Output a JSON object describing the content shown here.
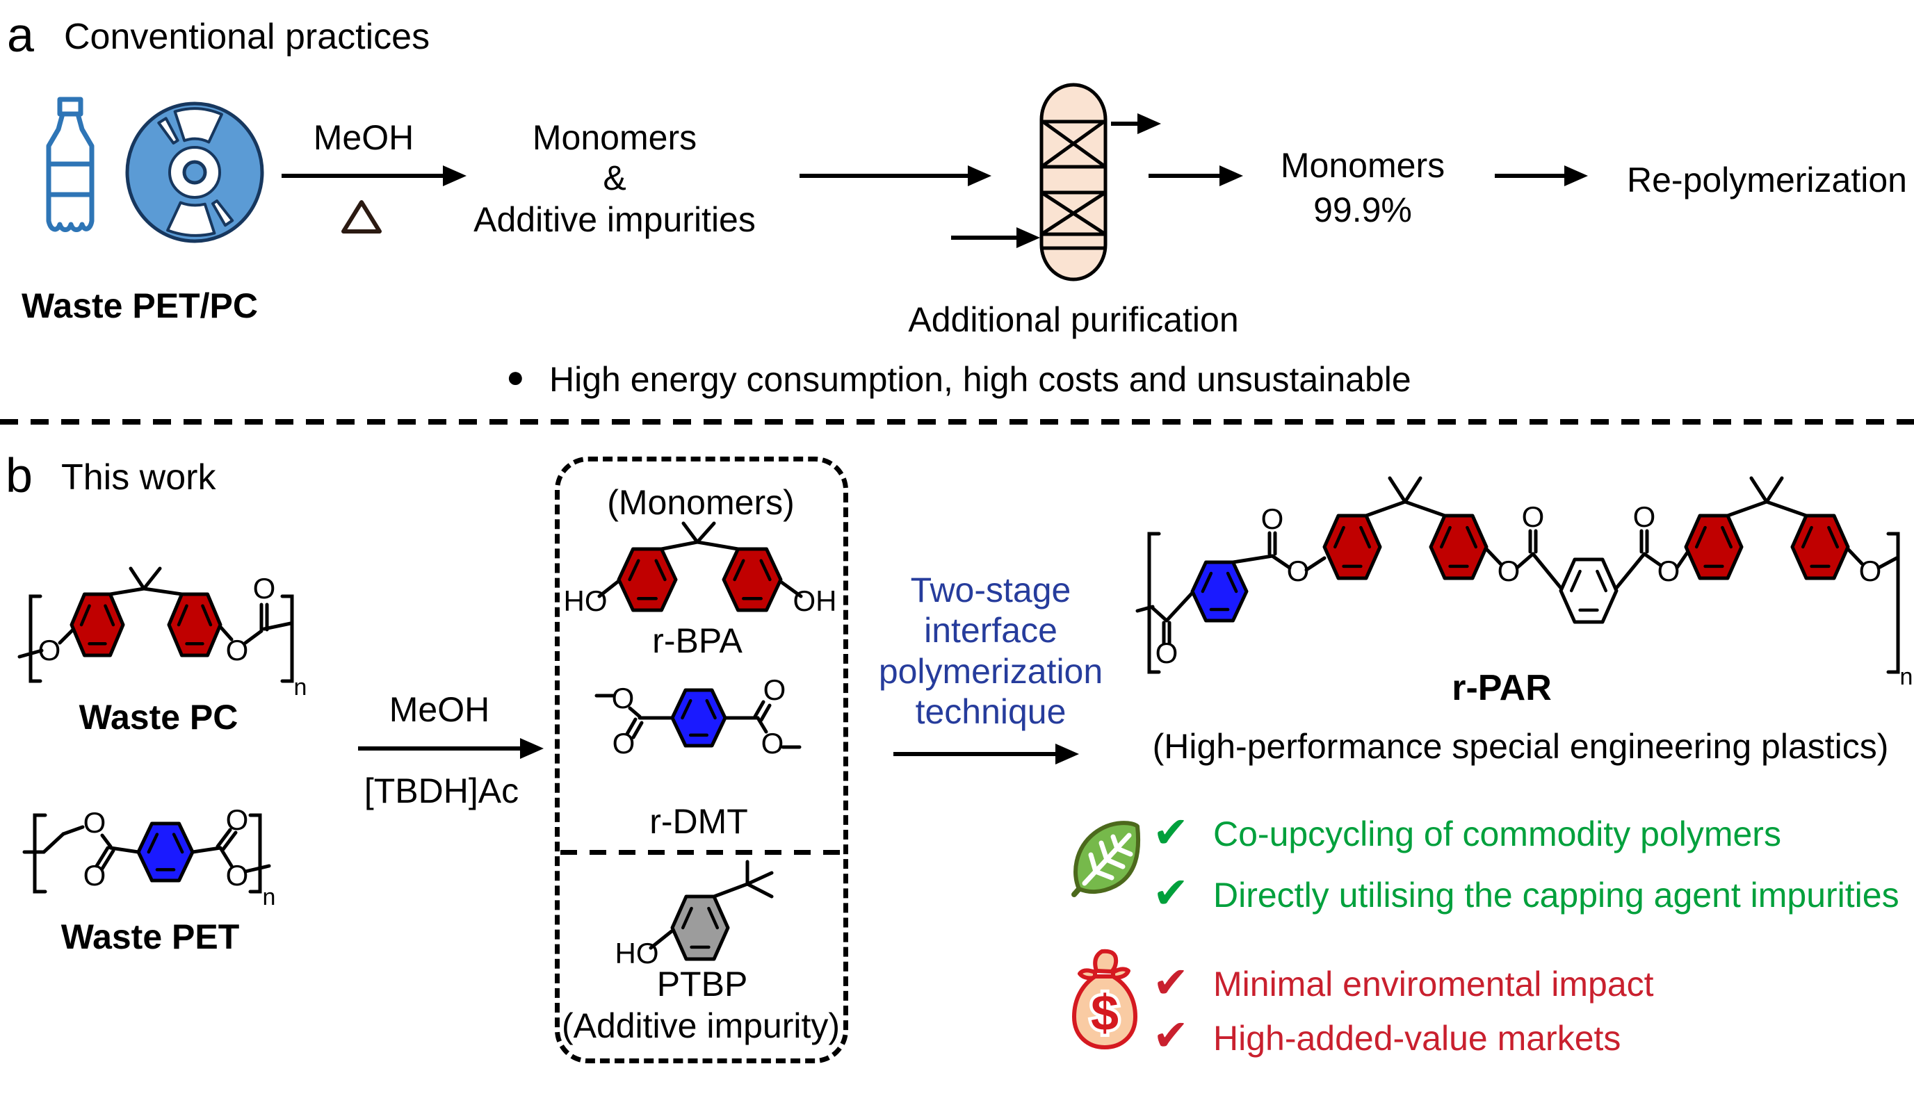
{
  "colors": {
    "icon_blue": "#5B9BD5",
    "icon_blue_stroke": "#2E75B6",
    "cd_outline": "#17375E",
    "column_fill": "#FAE3D2",
    "ring_red": "#C00000",
    "ring_blue": "#1A1AFF",
    "ring_gray": "#9C9C9C",
    "ring_white": "#FFFFFF",
    "process_text": "#263C9C",
    "green": "#00A03C",
    "red": "#C9202E",
    "leaf_fill": "#76B94B",
    "leaf_stroke": "#4C691C",
    "bag_red": "#D51920",
    "bag_fill": "#F9CBA3"
  },
  "panel_a": {
    "label": "a",
    "title": "Conventional practices",
    "feedstock_label": "Waste PET/PC",
    "reagent": "MeOH",
    "products": {
      "line1": "Monomers",
      "line2": "&",
      "line3": "Additive impurities"
    },
    "purification_caption": "Additional purification",
    "purified": {
      "line1": "Monomers",
      "line2": "99.9%"
    },
    "final_step": "Re-polymerization",
    "drawback": "High energy consumption, high costs and unsustainable"
  },
  "panel_b": {
    "label": "b",
    "title": "This work",
    "waste_pc": "Waste PC",
    "waste_pet": "Waste PET",
    "reagent_top": "MeOH",
    "catalyst": "[TBDH]Ac",
    "box_title": "(Monomers)",
    "monomer1": "r-BPA",
    "monomer2": "r-DMT",
    "impurity": "PTBP",
    "impurity_sub": "(Additive impurity)",
    "process": {
      "line1": "Two-stage",
      "line2": "interface",
      "line3": "polymerization",
      "line4": "technique"
    },
    "product": "r-PAR",
    "product_sub": "(High-performance special engineering plastics)",
    "green_benefits": [
      "Co-upcycling of commodity polymers",
      "Directly utilising the capping agent impurities"
    ],
    "red_benefits": [
      "Minimal enviromental impact",
      "High-added-value markets"
    ]
  },
  "atoms": {
    "O": "O",
    "HO": "HO",
    "OH": "OH",
    "n": "n",
    "dollar": "$"
  },
  "glyphs": {
    "check": "✔",
    "bullet": "●"
  }
}
